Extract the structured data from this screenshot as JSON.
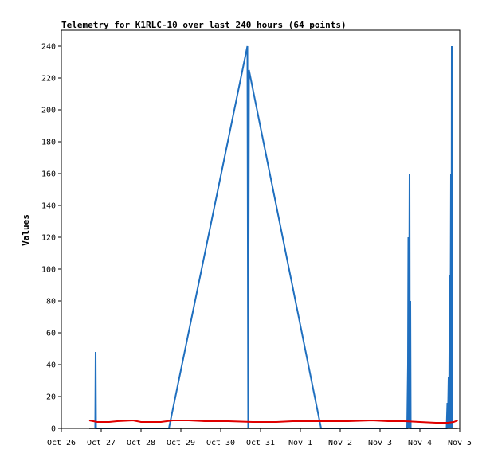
{
  "chart_data": {
    "type": "line",
    "title": "Telemetry for K1RLC-10 over last 240 hours (64 points)",
    "xlabel": "",
    "ylabel": "Values",
    "x_ticks": [
      "Oct 26",
      "Oct 27",
      "Oct 28",
      "Oct 29",
      "Oct 30",
      "Oct 31",
      "Nov 1",
      "Nov 2",
      "Nov 3",
      "Nov 4",
      "Nov 5"
    ],
    "xlim_days": [
      0,
      10
    ],
    "ylim": [
      0,
      250
    ],
    "y_ticks": [
      0,
      20,
      40,
      60,
      80,
      100,
      120,
      140,
      160,
      180,
      200,
      220,
      240
    ],
    "grid": false,
    "colors": {
      "blue": "#1f6fbf",
      "red": "#e00000",
      "black": "#000000"
    },
    "series": [
      {
        "color": "blue",
        "points": [
          [
            0.85,
            0
          ],
          [
            0.86,
            48
          ],
          [
            0.87,
            0
          ],
          [
            2.7,
            0
          ],
          [
            4.67,
            240
          ],
          [
            4.69,
            0
          ],
          [
            4.71,
            225
          ],
          [
            6.52,
            0
          ],
          [
            8.68,
            0
          ],
          [
            8.7,
            40
          ],
          [
            8.71,
            120
          ],
          [
            8.72,
            0
          ],
          [
            8.74,
            160
          ],
          [
            8.75,
            0
          ],
          [
            8.76,
            80
          ],
          [
            8.77,
            0
          ],
          [
            9.67,
            0
          ],
          [
            9.69,
            16
          ],
          [
            9.7,
            0
          ],
          [
            9.72,
            32
          ],
          [
            9.73,
            0
          ],
          [
            9.75,
            96
          ],
          [
            9.76,
            0
          ],
          [
            9.78,
            160
          ],
          [
            9.79,
            0
          ],
          [
            9.8,
            240
          ],
          [
            9.82,
            0
          ]
        ]
      },
      {
        "color": "red",
        "points": [
          [
            0.7,
            5
          ],
          [
            0.9,
            4
          ],
          [
            1.2,
            4
          ],
          [
            1.4,
            4.5
          ],
          [
            1.8,
            5
          ],
          [
            2.0,
            4
          ],
          [
            2.5,
            4
          ],
          [
            2.8,
            5
          ],
          [
            3.2,
            5
          ],
          [
            3.6,
            4.5
          ],
          [
            4.2,
            4.5
          ],
          [
            4.8,
            4
          ],
          [
            5.4,
            4
          ],
          [
            5.8,
            4.5
          ],
          [
            6.4,
            4.5
          ],
          [
            7.2,
            4.5
          ],
          [
            7.8,
            5
          ],
          [
            8.2,
            4.5
          ],
          [
            8.6,
            4.5
          ],
          [
            9.0,
            4
          ],
          [
            9.4,
            3.5
          ],
          [
            9.7,
            3.5
          ],
          [
            9.85,
            4
          ],
          [
            9.95,
            5
          ]
        ]
      },
      {
        "color": "black",
        "points": [
          [
            0.7,
            0
          ],
          [
            9.95,
            0
          ]
        ]
      }
    ]
  }
}
